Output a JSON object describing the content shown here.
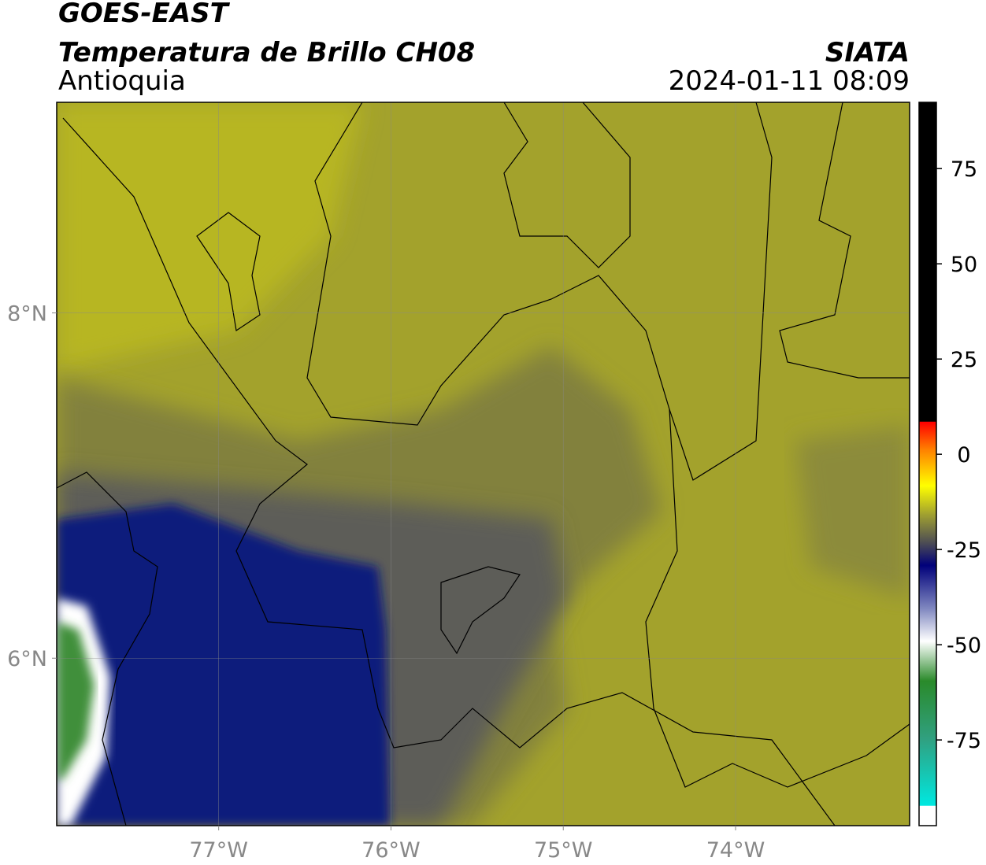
{
  "chart_data": {
    "type": "map",
    "title": "GOES-EAST",
    "subtitle": "Temperatura de Brillo CH08",
    "region": "Antioquia",
    "source": "SIATA",
    "timestamp": "2024-01-11 08:09",
    "xlim": [
      -77.94,
      -72.99
    ],
    "ylim": [
      5.03,
      9.22
    ],
    "xticks": [
      {
        "value": -77,
        "label": "77°W"
      },
      {
        "value": -76,
        "label": "76°W"
      },
      {
        "value": -75,
        "label": "75°W"
      },
      {
        "value": -74,
        "label": "74°W"
      }
    ],
    "yticks": [
      {
        "value": 6,
        "label": "6°N"
      },
      {
        "value": 8,
        "label": "8°N"
      }
    ],
    "grid": true,
    "colorbar": {
      "lim": [
        -97.5,
        92.4
      ],
      "ticks": [
        -75,
        -50,
        -25,
        0,
        25,
        50,
        75
      ]
    }
  }
}
